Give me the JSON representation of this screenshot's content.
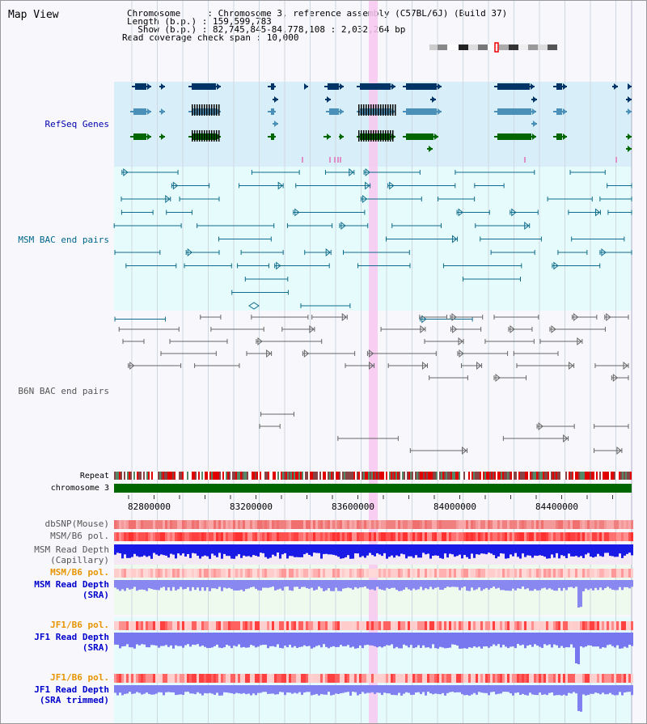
{
  "header": {
    "title": "Map View",
    "info_lines": [
      "Chromosome     : Chromosome 3, reference assembly (C57BL/6J) (Build 37)",
      "Length (b.p.) : 159,599,783",
      "  Show (b.p.) : 82,745,845-84,778,108 : 2,032,264 bp",
      "Read coverage check span : 10,000"
    ]
  },
  "tracks": {
    "refseq": "RefSeq Genes",
    "msm_bac": "MSM BAC end pairs",
    "b6n_bac": "B6N BAC end pairs",
    "repeat": "Repeat",
    "chromosome": "chromosome 3",
    "dbsnp": "dbSNP(Mouse)",
    "msm_pol": "MSM/B6 pol.",
    "msm_depth_cap_1": "MSM Read Depth",
    "msm_depth_cap_2": "(Capillary)",
    "msm_pol_sra": "MSM/B6 pol.",
    "msm_depth_sra_1": "MSM Read Depth",
    "msm_depth_sra_2": "(SRA)",
    "jf1_pol_1": "JF1/B6 pol.",
    "jf1_depth_1": "JF1 Read Depth",
    "jf1_depth_1b": "(SRA)",
    "jf1_pol_2": "JF1/B6 pol.",
    "jf1_depth_2": "JF1 Read Depth",
    "jf1_depth_2b": "(SRA trimmed)"
  },
  "axis": {
    "ticks": [
      "82800000",
      "83200000",
      "83600000",
      "84000000",
      "84400000"
    ]
  },
  "colors": {
    "refseq_label": "#0000aa",
    "msm_label": "#00668c",
    "b6n_label": "#555555",
    "orange_label": "#e69400",
    "blue_label": "#0000cc",
    "highlight": "#f8c8f0"
  }
}
